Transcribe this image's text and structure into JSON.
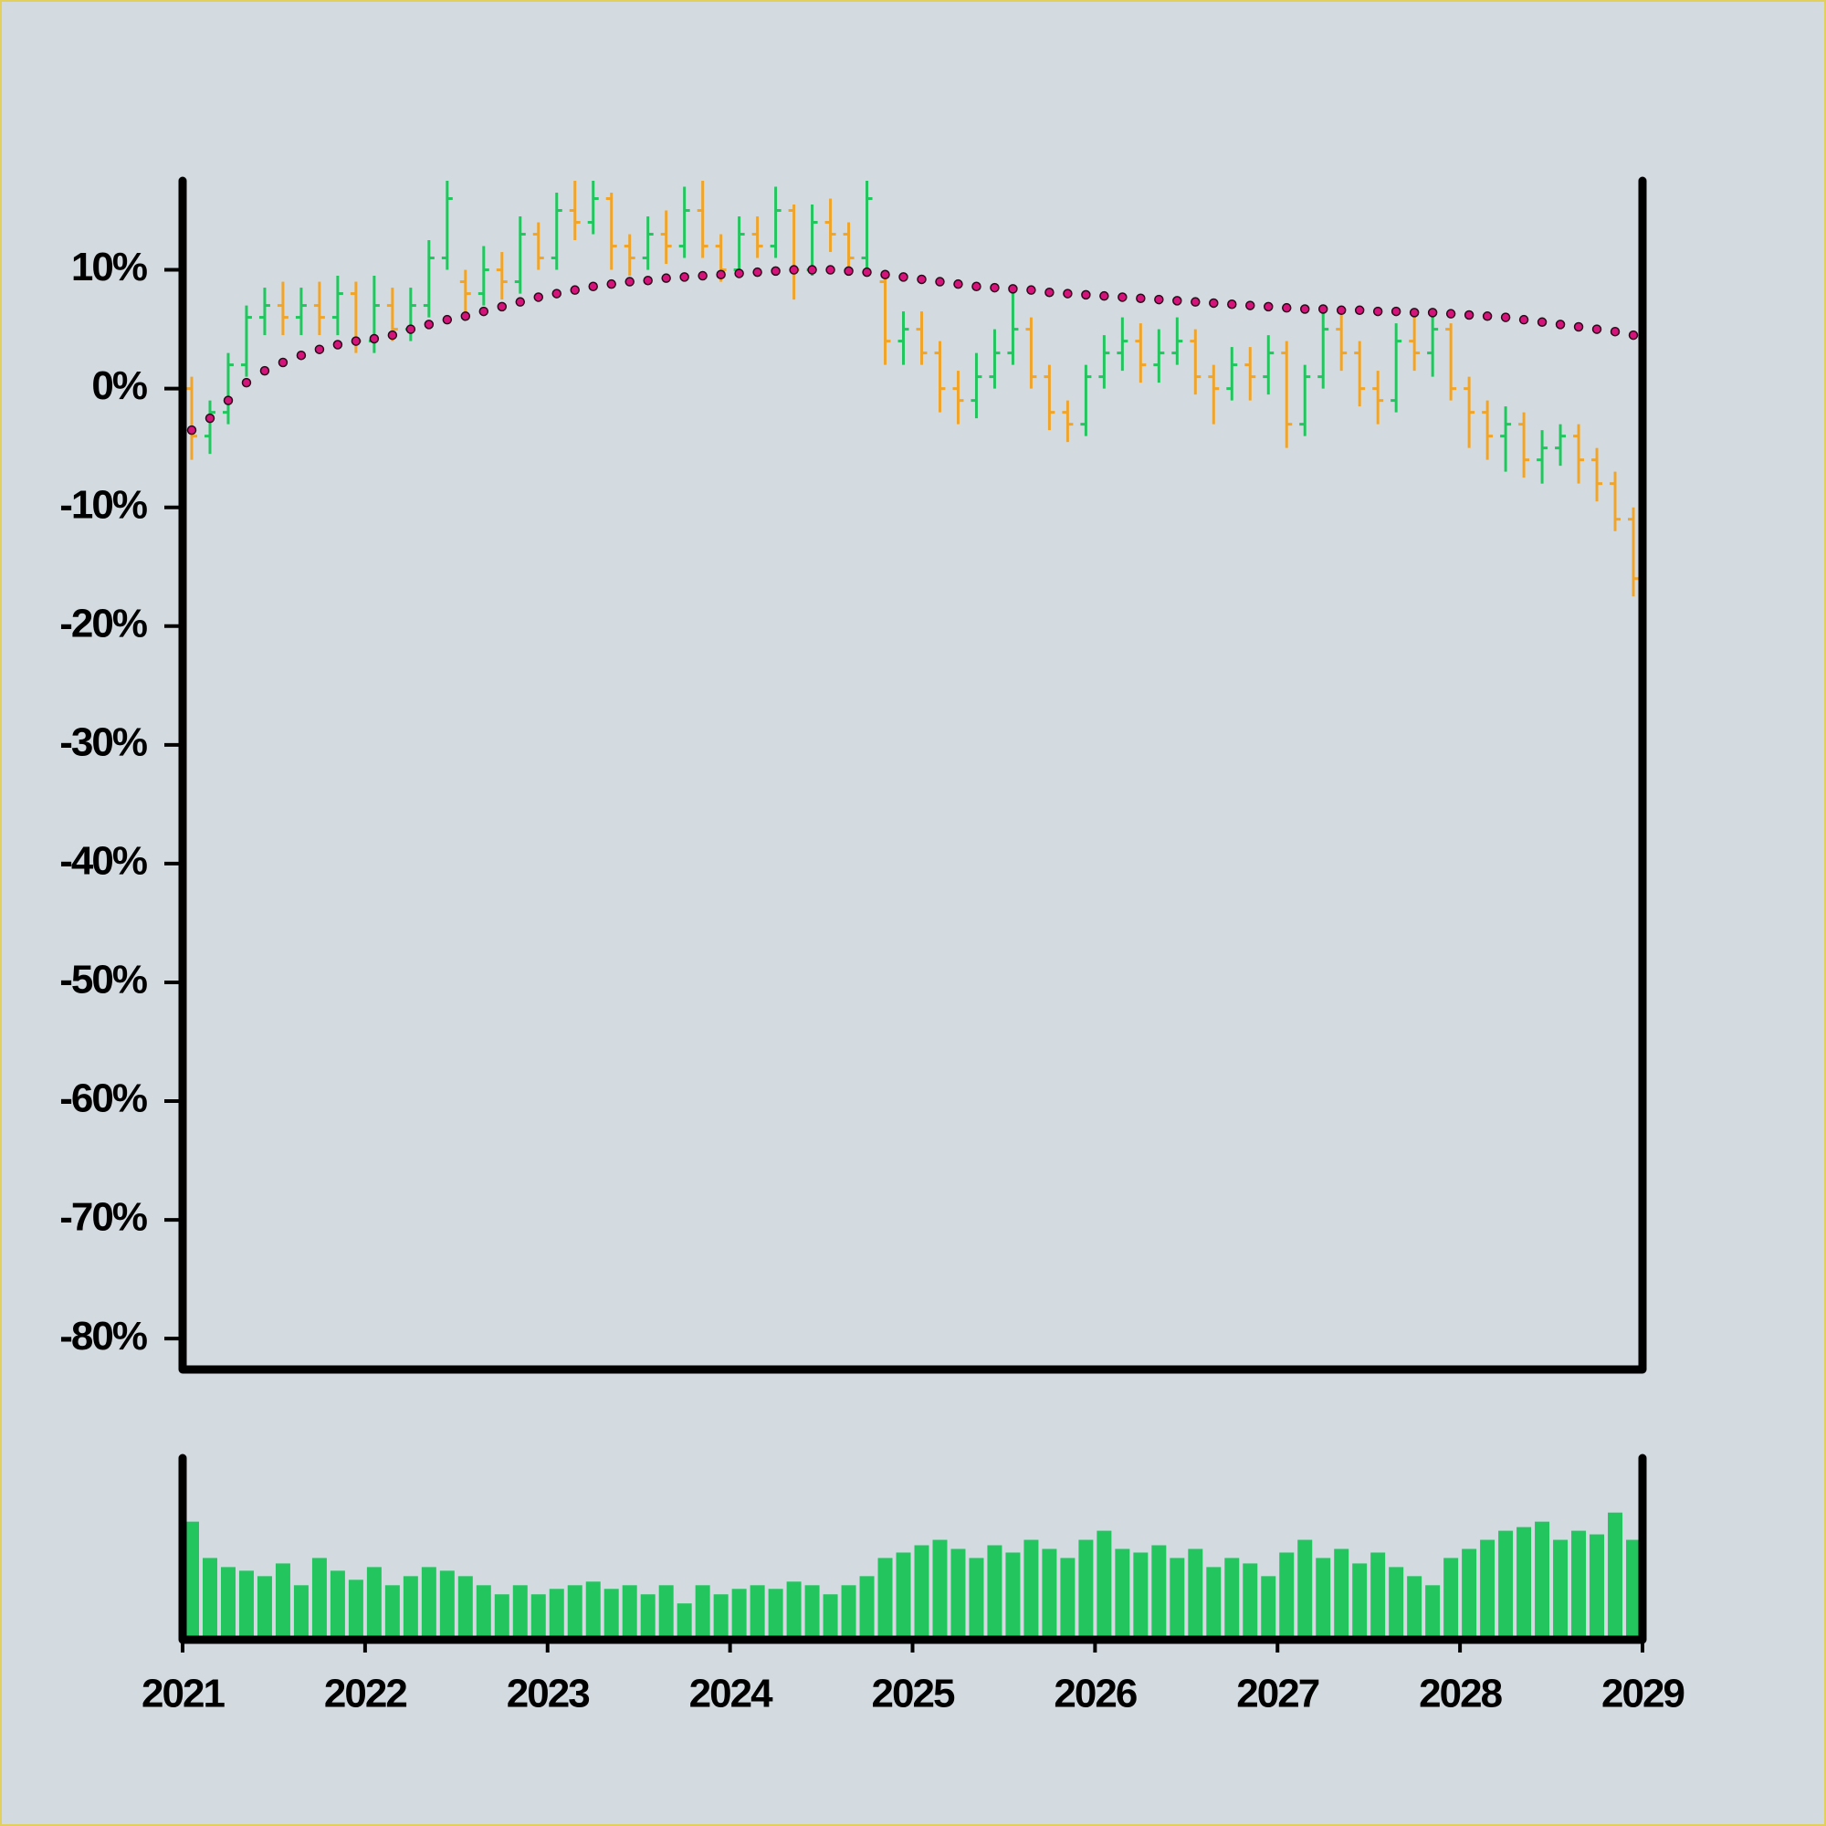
{
  "chart_data": [
    {
      "type": "ohlc",
      "x": [
        2021.0,
        2021.1,
        2021.2,
        2021.3,
        2021.4,
        2021.5,
        2021.6,
        2021.7,
        2021.8,
        2021.9,
        2022.0,
        2022.1,
        2022.2,
        2022.3,
        2022.4,
        2022.5,
        2022.6,
        2022.7,
        2022.8,
        2022.9,
        2023.0,
        2023.1,
        2023.2,
        2023.3,
        2023.4,
        2023.5,
        2023.6,
        2023.7,
        2023.8,
        2023.9,
        2024.0,
        2024.1,
        2024.2,
        2024.3,
        2024.4,
        2024.5,
        2024.6,
        2024.7,
        2024.8,
        2024.9,
        2025.0,
        2025.1,
        2025.2,
        2025.3,
        2025.4,
        2025.5,
        2025.6,
        2025.7,
        2025.8,
        2025.9,
        2026.0,
        2026.1,
        2026.2,
        2026.3,
        2026.4,
        2026.5,
        2026.6,
        2026.7,
        2026.8,
        2026.9,
        2027.0,
        2027.1,
        2027.2,
        2027.3,
        2027.4,
        2027.5,
        2027.6,
        2027.7,
        2027.8,
        2027.9,
        2028.0,
        2028.1,
        2028.2,
        2028.3,
        2028.4,
        2028.5,
        2028.6,
        2028.7,
        2028.8,
        2028.9
      ],
      "open": [
        0,
        -4,
        -2,
        2,
        6,
        7,
        6,
        7,
        6,
        8,
        4,
        7,
        5,
        7,
        11,
        9,
        8,
        10,
        9,
        13,
        11,
        15,
        14,
        16,
        12,
        11,
        13,
        12,
        15,
        12,
        10,
        13,
        12,
        15,
        10,
        14,
        13,
        11,
        9,
        4,
        5,
        3,
        0,
        -1,
        1,
        3,
        5,
        1,
        -2,
        -3,
        1,
        3,
        4,
        2,
        3,
        4,
        1,
        0,
        2,
        1,
        3,
        -3,
        1,
        5,
        3,
        0,
        -1,
        4,
        3,
        5,
        0,
        -2,
        -4,
        -3,
        -6,
        -5,
        -4,
        -6,
        -8,
        -11
      ],
      "high": [
        1,
        -1,
        3,
        7,
        8.5,
        9,
        8.5,
        9,
        9.5,
        9,
        9.5,
        8.5,
        8.5,
        12.5,
        17.5,
        10,
        12,
        11.5,
        14.5,
        14,
        16.5,
        17.5,
        17.5,
        16.5,
        13,
        14.5,
        15,
        17,
        17.5,
        13,
        14.5,
        14.5,
        17,
        15.5,
        15.5,
        16,
        14,
        17.5,
        10,
        6.5,
        6.5,
        4,
        1.5,
        3,
        5,
        8,
        6,
        2,
        -1,
        2,
        4.5,
        6,
        5.5,
        5,
        6,
        5,
        2,
        3.5,
        3.5,
        4.5,
        4,
        2,
        6.5,
        6.5,
        4,
        1.5,
        5.5,
        6,
        6.5,
        5.5,
        1,
        -1,
        -1.5,
        -2,
        -3.5,
        -3,
        -3,
        -5,
        -7,
        -10
      ],
      "low": [
        -6,
        -5.5,
        -3,
        1,
        4.5,
        4.5,
        4.5,
        4.5,
        4.5,
        3,
        3,
        4,
        4,
        6,
        10,
        6,
        7,
        7.5,
        8,
        10,
        10,
        12.5,
        13,
        10,
        9.5,
        10,
        10.5,
        11,
        11,
        9,
        9.5,
        11,
        11,
        7.5,
        9.5,
        11.5,
        9.5,
        10,
        2,
        2,
        2,
        -2,
        -3,
        -2.5,
        0,
        2,
        0,
        -3.5,
        -4.5,
        -4,
        0,
        1.5,
        0.5,
        0.5,
        2,
        -0.5,
        -3,
        -1,
        -1,
        -0.5,
        -5,
        -4,
        0,
        1.5,
        -1.5,
        -3,
        -2,
        1.5,
        1,
        -1,
        -5,
        -6,
        -7,
        -7.5,
        -8,
        -6.5,
        -8,
        -9.5,
        -12,
        -17.5
      ],
      "close": [
        -4,
        -2,
        2,
        6,
        7,
        6,
        7,
        6,
        8,
        4,
        7,
        5,
        7,
        11,
        16,
        8,
        10,
        9,
        13,
        11,
        15,
        14,
        16,
        12,
        11,
        13,
        12,
        15,
        12,
        10,
        13,
        12,
        15,
        10,
        14,
        13,
        11,
        16,
        4,
        5,
        3,
        0,
        -1,
        1,
        3,
        5,
        1,
        -2,
        -3,
        1,
        3,
        4,
        2,
        3,
        4,
        1,
        0,
        2,
        1,
        3,
        -3,
        1,
        5,
        3,
        0,
        -1,
        4,
        3,
        5,
        0,
        -2,
        -4,
        -3,
        -6,
        -5,
        -4,
        -6,
        -8,
        -11,
        -16
      ],
      "up_color": "#22c55e",
      "down_color": "#f0a52a",
      "moving_average": {
        "color": "#d4147a",
        "values": [
          -3.5,
          -2.5,
          -1,
          0.5,
          1.5,
          2.2,
          2.8,
          3.3,
          3.7,
          4.0,
          4.2,
          4.5,
          5.0,
          5.4,
          5.8,
          6.1,
          6.5,
          6.9,
          7.3,
          7.7,
          8.0,
          8.3,
          8.6,
          8.8,
          9.0,
          9.1,
          9.3,
          9.4,
          9.5,
          9.6,
          9.7,
          9.8,
          9.9,
          10.0,
          10.0,
          10.0,
          9.9,
          9.8,
          9.6,
          9.4,
          9.2,
          9.0,
          8.8,
          8.6,
          8.5,
          8.4,
          8.3,
          8.1,
          8.0,
          7.9,
          7.8,
          7.7,
          7.6,
          7.5,
          7.4,
          7.3,
          7.2,
          7.1,
          7.0,
          6.9,
          6.8,
          6.7,
          6.7,
          6.6,
          6.6,
          6.5,
          6.5,
          6.4,
          6.4,
          6.3,
          6.2,
          6.1,
          6.0,
          5.8,
          5.6,
          5.4,
          5.2,
          5.0,
          4.8,
          4.5
        ]
      },
      "xlim": [
        2021,
        2029
      ],
      "ylim": [
        -82.6,
        17.5
      ],
      "yticks": [
        {
          "value": 10,
          "label": "10%"
        },
        {
          "value": 0,
          "label": "0%"
        },
        {
          "value": -10,
          "label": "-10%"
        },
        {
          "value": -20,
          "label": "-20%"
        },
        {
          "value": -30,
          "label": "-30%"
        },
        {
          "value": -40,
          "label": "-40%"
        },
        {
          "value": -50,
          "label": "-50%"
        },
        {
          "value": -60,
          "label": "-60%"
        },
        {
          "value": -70,
          "label": "-70%"
        },
        {
          "value": -80,
          "label": "-80%"
        }
      ]
    },
    {
      "type": "bar",
      "x": [
        2021.0,
        2021.1,
        2021.2,
        2021.3,
        2021.4,
        2021.5,
        2021.6,
        2021.7,
        2021.8,
        2021.9,
        2022.0,
        2022.1,
        2022.2,
        2022.3,
        2022.4,
        2022.5,
        2022.6,
        2022.7,
        2022.8,
        2022.9,
        2023.0,
        2023.1,
        2023.2,
        2023.3,
        2023.4,
        2023.5,
        2023.6,
        2023.7,
        2023.8,
        2023.9,
        2024.0,
        2024.1,
        2024.2,
        2024.3,
        2024.4,
        2024.5,
        2024.6,
        2024.7,
        2024.8,
        2024.9,
        2025.0,
        2025.1,
        2025.2,
        2025.3,
        2025.4,
        2025.5,
        2025.6,
        2025.7,
        2025.8,
        2025.9,
        2026.0,
        2026.1,
        2026.2,
        2026.3,
        2026.4,
        2026.5,
        2026.6,
        2026.7,
        2026.8,
        2026.9,
        2027.0,
        2027.1,
        2027.2,
        2027.3,
        2027.4,
        2027.5,
        2027.6,
        2027.7,
        2027.8,
        2027.9,
        2028.0,
        2028.1,
        2028.2,
        2028.3,
        2028.4,
        2028.5,
        2028.6,
        2028.7,
        2028.8,
        2028.9
      ],
      "values": [
        65,
        45,
        40,
        38,
        35,
        42,
        30,
        45,
        38,
        33,
        40,
        30,
        35,
        40,
        38,
        35,
        30,
        25,
        30,
        25,
        28,
        30,
        32,
        28,
        30,
        25,
        30,
        20,
        30,
        25,
        28,
        30,
        28,
        32,
        30,
        25,
        30,
        35,
        45,
        48,
        52,
        55,
        50,
        45,
        52,
        48,
        55,
        50,
        45,
        55,
        60,
        50,
        48,
        52,
        45,
        50,
        40,
        45,
        42,
        35,
        48,
        55,
        45,
        50,
        42,
        48,
        40,
        35,
        30,
        45,
        50,
        55,
        60,
        62,
        65,
        55,
        60,
        58,
        70,
        55
      ],
      "color": "#22c55e",
      "xlim": [
        2021,
        2029
      ],
      "ylim": [
        0,
        100
      ],
      "xticks": [
        2021,
        2022,
        2023,
        2024,
        2025,
        2026,
        2027,
        2028,
        2029
      ]
    }
  ]
}
